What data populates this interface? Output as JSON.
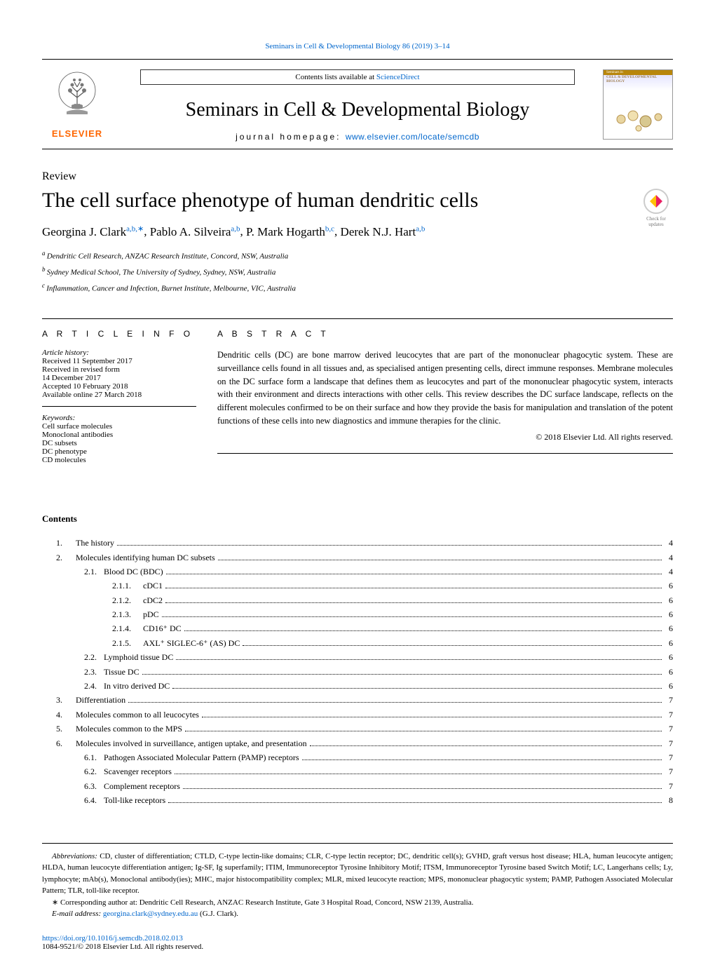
{
  "header": {
    "citation_link": "Seminars in Cell & Developmental Biology 86 (2019) 3–14",
    "contents_label": "Contents lists available at ",
    "contents_link": "ScienceDirect",
    "journal_title": "Seminars in Cell & Developmental Biology",
    "homepage_label": "journal homepage: ",
    "homepage_link": "www.elsevier.com/locate/semcdb",
    "elsevier_text": "ELSEVIER",
    "cover_seminars": "Seminars in",
    "cover_cdb": "CELL & DEVELOPMENTAL",
    "cover_bio": "BIOLOGY"
  },
  "article": {
    "type": "Review",
    "title": "The cell surface phenotype of human dendritic cells",
    "check_updates": "Check for updates"
  },
  "authors": [
    {
      "name": "Georgina J. Clark",
      "affil": "a,b,",
      "star": "∗"
    },
    {
      "name": "Pablo A. Silveira",
      "affil": "a,b",
      "star": ""
    },
    {
      "name": "P. Mark Hogarth",
      "affil": "b,c",
      "star": ""
    },
    {
      "name": "Derek N.J. Hart",
      "affil": "a,b",
      "star": ""
    }
  ],
  "affiliations": [
    {
      "sup": "a",
      "text": "Dendritic Cell Research, ANZAC Research Institute, Concord, NSW, Australia"
    },
    {
      "sup": "b",
      "text": "Sydney Medical School, The University of Sydney, Sydney, NSW, Australia"
    },
    {
      "sup": "c",
      "text": "Inflammation, Cancer and Infection, Burnet Institute, Melbourne, VIC, Australia"
    }
  ],
  "info": {
    "heading": "A R T I C L E   I N F O",
    "history_label": "Article history:",
    "history": [
      "Received 11 September 2017",
      "Received in revised form",
      "14 December 2017",
      "Accepted 10 February 2018",
      "Available online 27 March 2018"
    ],
    "keywords_label": "Keywords:",
    "keywords": [
      "Cell surface molecules",
      "Monoclonal antibodies",
      "DC subsets",
      "DC phenotype",
      "CD molecules"
    ]
  },
  "abstract": {
    "heading": "A B S T R A C T",
    "text": "Dendritic cells (DC) are bone marrow derived leucocytes that are part of the mononuclear phagocytic system. These are surveillance cells found in all tissues and, as specialised antigen presenting cells, direct immune responses. Membrane molecules on the DC surface form a landscape that defines them as leucocytes and part of the mononuclear phagocytic system, interacts with their environment and directs interactions with other cells. This review describes the DC surface landscape, reflects on the different molecules confirmed to be on their surface and how they provide the basis for manipulation and translation of the potent functions of these cells into new diagnostics and immune therapies for the clinic.",
    "copyright": "© 2018 Elsevier Ltd. All rights reserved."
  },
  "contents_heading": "Contents",
  "toc": [
    {
      "level": 1,
      "num": "1.",
      "title": "The history",
      "page": "4"
    },
    {
      "level": 1,
      "num": "2.",
      "title": "Molecules identifying human DC subsets",
      "page": "4"
    },
    {
      "level": 2,
      "num": "2.1.",
      "title": "Blood DC (BDC)",
      "page": "4"
    },
    {
      "level": 3,
      "num": "2.1.1.",
      "title": "cDC1",
      "page": "6"
    },
    {
      "level": 3,
      "num": "2.1.2.",
      "title": "cDC2",
      "page": "6"
    },
    {
      "level": 3,
      "num": "2.1.3.",
      "title": "pDC",
      "page": "6"
    },
    {
      "level": 3,
      "num": "2.1.4.",
      "title": "CD16⁺ DC",
      "page": "6"
    },
    {
      "level": 3,
      "num": "2.1.5.",
      "title": "AXL⁺ SIGLEC-6⁺ (AS) DC",
      "page": "6"
    },
    {
      "level": 2,
      "num": "2.2.",
      "title": "Lymphoid tissue DC",
      "page": "6"
    },
    {
      "level": 2,
      "num": "2.3.",
      "title": "Tissue DC",
      "page": "6"
    },
    {
      "level": 2,
      "num": "2.4.",
      "title": "In vitro derived DC",
      "page": "6"
    },
    {
      "level": 1,
      "num": "3.",
      "title": "Differentiation",
      "page": "7"
    },
    {
      "level": 1,
      "num": "4.",
      "title": "Molecules common to all leucocytes",
      "page": "7"
    },
    {
      "level": 1,
      "num": "5.",
      "title": "Molecules common to the MPS",
      "page": "7"
    },
    {
      "level": 1,
      "num": "6.",
      "title": "Molecules involved in surveillance, antigen uptake, and presentation",
      "page": "7"
    },
    {
      "level": 2,
      "num": "6.1.",
      "title": "Pathogen Associated Molecular Pattern (PAMP) receptors",
      "page": "7"
    },
    {
      "level": 2,
      "num": "6.2.",
      "title": "Scavenger receptors",
      "page": "7"
    },
    {
      "level": 2,
      "num": "6.3.",
      "title": "Complement receptors",
      "page": "7"
    },
    {
      "level": 2,
      "num": "6.4.",
      "title": "Toll-like receptors",
      "page": "8"
    }
  ],
  "footnotes": {
    "abbrev_label": "Abbreviations:",
    "abbrev_text": " CD, cluster of differentiation; CTLD, C-type lectin-like domains; CLR, C-type lectin receptor; DC, dendritic cell(s); GVHD, graft versus host disease; HLA, human leucocyte antigen; HLDA, human leucocyte differentiation antigen; Ig-SF, Ig superfamily; ITIM, Immunoreceptor Tyrosine Inhibitory Motif; ITSM, Immunoreceptor Tyrosine based Switch Motif; LC, Langerhans cells; Ly, lymphocyte; mAb(s), Monoclonal antibody(ies); MHC, major histocompatibility complex; MLR, mixed leucocyte reaction; MPS, mononuclear phagocytic system; PAMP, Pathogen Associated Molecular Pattern; TLR, toll-like receptor.",
    "corr_star": "∗",
    "corr_text": " Corresponding author at: Dendritic Cell Research, ANZAC Research Institute, Gate 3 Hospital Road, Concord, NSW 2139, Australia.",
    "email_label": "E-mail address: ",
    "email_link": "georgina.clark@sydney.edu.au",
    "email_suffix": " (G.J. Clark)."
  },
  "doi": {
    "link": "https://doi.org/10.1016/j.semcdb.2018.02.013",
    "issn": "1084-9521/© 2018 Elsevier Ltd. All rights reserved."
  },
  "colors": {
    "link": "#0066cc",
    "elsevier": "#ff6600"
  }
}
